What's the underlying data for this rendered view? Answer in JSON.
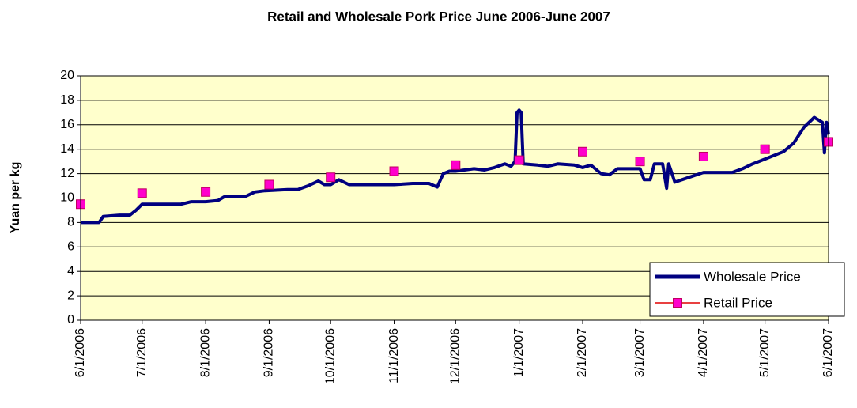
{
  "chart_data": {
    "type": "line",
    "title": "Retail and Wholesale Pork Price June 2006-June 2007",
    "y_label": "Yuan per kg",
    "xlim": [
      "6/1/2006",
      "6/1/2007"
    ],
    "xticks": [
      "6/1/2006",
      "7/1/2006",
      "8/1/2006",
      "9/1/2006",
      "10/1/2006",
      "11/1/2006",
      "12/1/2006",
      "1/1/2007",
      "2/1/2007",
      "3/1/2007",
      "4/1/2007",
      "5/1/2007",
      "6/1/2007"
    ],
    "ylim": [
      0,
      20
    ],
    "yticks": [
      0,
      2,
      4,
      6,
      8,
      10,
      12,
      14,
      16,
      18,
      20
    ],
    "grid": true,
    "legend": "bottom-right",
    "series": [
      {
        "name": "Wholesale Price",
        "color": "#000080",
        "marker": false,
        "x": [
          "6/1/2006",
          "6/10/2006",
          "6/12/2006",
          "6/20/2006",
          "6/25/2006",
          "6/28/2006",
          "7/1/2006",
          "7/20/2006",
          "7/25/2006",
          "8/1/2006",
          "8/7/2006",
          "8/10/2006",
          "8/20/2006",
          "8/25/2006",
          "8/30/2006",
          "9/10/2006",
          "9/15/2006",
          "9/20/2006",
          "9/25/2006",
          "9/28/2006",
          "10/1/2006",
          "10/5/2006",
          "10/10/2006",
          "10/20/2006",
          "11/1/2006",
          "11/10/2006",
          "11/18/2006",
          "11/22/2006",
          "11/25/2006",
          "11/28/2006",
          "12/1/2006",
          "12/10/2006",
          "12/15/2006",
          "12/20/2006",
          "12/25/2006",
          "12/28/2006",
          "12/30/2006",
          "12/31/2006",
          "1/1/2007",
          "1/2/2007",
          "1/3/2007",
          "1/10/2007",
          "1/15/2007",
          "1/20/2007",
          "1/28/2007",
          "2/1/2007",
          "2/5/2007",
          "2/10/2007",
          "2/14/2007",
          "2/18/2007",
          "2/25/2007",
          "3/1/2007",
          "3/3/2007",
          "3/6/2007",
          "3/8/2007",
          "3/12/2007",
          "3/14/2007",
          "3/15/2007",
          "3/18/2007",
          "3/25/2007",
          "4/1/2007",
          "4/15/2007",
          "4/20/2007",
          "4/25/2007",
          "5/1/2007",
          "5/10/2007",
          "5/15/2007",
          "5/20/2007",
          "5/25/2007",
          "5/29/2007",
          "5/30/2007",
          "5/31/2007",
          "6/1/2007"
        ],
        "values": [
          8.0,
          8.0,
          8.5,
          8.6,
          8.6,
          9.0,
          9.5,
          9.5,
          9.7,
          9.7,
          9.8,
          10.1,
          10.1,
          10.5,
          10.6,
          10.7,
          10.7,
          11.0,
          11.4,
          11.1,
          11.1,
          11.5,
          11.1,
          11.1,
          11.1,
          11.2,
          11.2,
          10.9,
          12.0,
          12.2,
          12.2,
          12.4,
          12.3,
          12.5,
          12.8,
          12.6,
          13.0,
          17.0,
          17.2,
          17.0,
          12.8,
          12.7,
          12.6,
          12.8,
          12.7,
          12.5,
          12.7,
          12.0,
          11.9,
          12.4,
          12.4,
          12.4,
          11.5,
          11.5,
          12.8,
          12.8,
          10.8,
          12.8,
          11.3,
          11.7,
          12.1,
          12.1,
          12.4,
          12.8,
          13.2,
          13.8,
          14.5,
          15.8,
          16.6,
          16.2,
          13.7,
          16.2,
          15.2
        ]
      },
      {
        "name": "Retail Price",
        "color": "#ff00cc",
        "marker": true,
        "x": [
          "6/1/2006",
          "7/1/2006",
          "8/1/2006",
          "9/1/2006",
          "10/1/2006",
          "11/1/2006",
          "12/1/2006",
          "1/1/2007",
          "2/1/2007",
          "3/1/2007",
          "4/1/2007",
          "5/1/2007",
          "6/1/2007"
        ],
        "values": [
          9.5,
          10.4,
          10.5,
          11.1,
          11.7,
          12.2,
          12.7,
          13.1,
          13.8,
          13.0,
          13.4,
          14.0,
          14.6
        ]
      }
    ]
  }
}
